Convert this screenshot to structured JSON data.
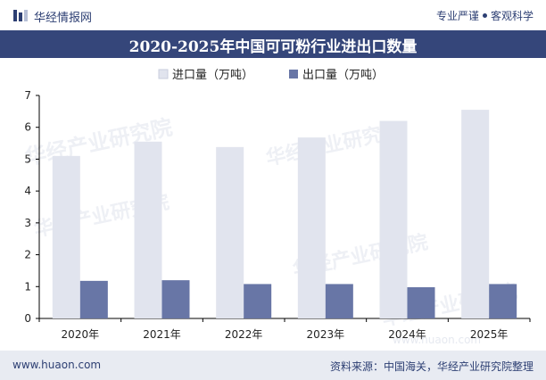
{
  "header": {
    "brand": "华经情报网",
    "slogan_left": "专业严谨",
    "slogan_right": "客观科学",
    "logo_icon": "bar-logo-icon"
  },
  "title": "2020-2025年中国可可粉行业进出口数量",
  "footer": {
    "site": "www.huaon.com",
    "source": "资料来源：中国海关，华经产业研究院整理"
  },
  "watermark": {
    "brand": "华经产业研究院",
    "site": "www.huaon.com"
  },
  "colors": {
    "import": "#e1e4ee",
    "export": "#6876a6",
    "title_bg": "#35467a",
    "text": "#2d3f73"
  },
  "chart_data": {
    "type": "bar",
    "categories": [
      "2020年",
      "2021年",
      "2022年",
      "2023年",
      "2024年",
      "2025年"
    ],
    "series": [
      {
        "name": "进口量（万吨）",
        "values": [
          5.1,
          5.55,
          5.38,
          5.68,
          6.2,
          6.55
        ],
        "color": "#e1e4ee"
      },
      {
        "name": "出口量（万吨）",
        "values": [
          1.18,
          1.2,
          1.08,
          1.08,
          0.98,
          1.08
        ],
        "color": "#6876a6"
      }
    ],
    "y_ticks": [
      "0",
      "1",
      "2",
      "3",
      "4",
      "5",
      "6",
      "7"
    ],
    "ylim": [
      0,
      7
    ],
    "grid": false,
    "legend": "top-left"
  }
}
